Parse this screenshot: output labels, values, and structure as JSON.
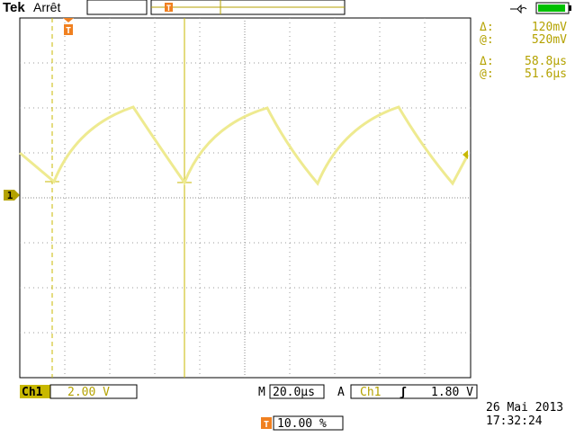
{
  "header": {
    "brand": "Tek",
    "status": "Arrêt",
    "trigger_icon": "T"
  },
  "cursors": [
    {
      "label": "Δ:",
      "value": "120mV"
    },
    {
      "label": "@:",
      "value": "520mV"
    },
    {
      "label": "Δ:",
      "value": "58.8µs"
    },
    {
      "label": "@:",
      "value": "51.6µs"
    }
  ],
  "channel_marker": "1",
  "footer": {
    "channel": "Ch1",
    "scale": "2.00 V",
    "timebase_label": "M",
    "timebase": "20.0µs",
    "trigger_mode": "A",
    "trigger_source": "Ch1",
    "trigger_slope": "ʃ",
    "trigger_level": "1.80 V",
    "date": "26 Mai 2013",
    "time": "17:32:24",
    "trigger_icon": "T",
    "trigger_position": "10.00 %"
  }
}
